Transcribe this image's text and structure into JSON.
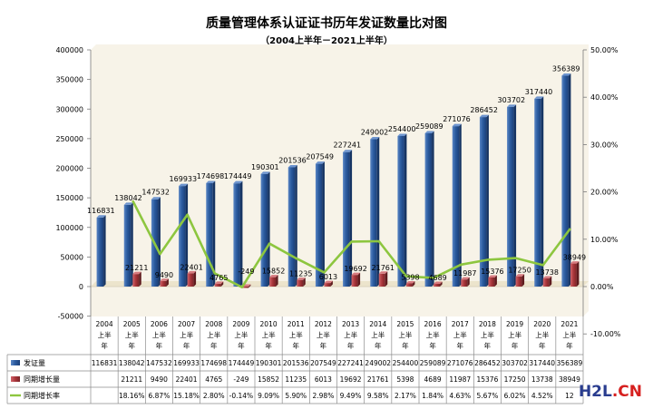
{
  "chart_data": {
    "type": "bar",
    "title": "质量管理体系认证证书历年发证数量比对图",
    "subtitle": "（2004上半年－2021上半年）",
    "categories": [
      {
        "year": "2004",
        "line2": "上半",
        "line3": "年"
      },
      {
        "year": "2005",
        "line2": "上半",
        "line3": "年"
      },
      {
        "year": "2006",
        "line2": "上半",
        "line3": "年"
      },
      {
        "year": "2007",
        "line2": "上半",
        "line3": "年"
      },
      {
        "year": "2008",
        "line2": "上半",
        "line3": "年"
      },
      {
        "year": "2009",
        "line2": "上半",
        "line3": "年"
      },
      {
        "year": "2010",
        "line2": "上半",
        "line3": "年"
      },
      {
        "year": "2011",
        "line2": "上半",
        "line3": "年"
      },
      {
        "year": "2012",
        "line2": "上半",
        "line3": "年"
      },
      {
        "year": "2013",
        "line2": "上半",
        "line3": "年"
      },
      {
        "year": "2014",
        "line2": "上半",
        "line3": "年"
      },
      {
        "year": "2015",
        "line2": "上半",
        "line3": "年"
      },
      {
        "year": "2016",
        "line2": "上半",
        "line3": "年"
      },
      {
        "year": "2017",
        "line2": "上半",
        "line3": "年"
      },
      {
        "year": "2018",
        "line2": "上半",
        "line3": "年"
      },
      {
        "year": "2019",
        "line2": "上半",
        "line3": "年"
      },
      {
        "year": "2020",
        "line2": "上半",
        "line3": "年"
      },
      {
        "year": "2021",
        "line2": "上半",
        "line3": "年"
      }
    ],
    "series": [
      {
        "name": "发证量",
        "kind": "bar",
        "axis": "left",
        "color": "#2e5fa3",
        "values": [
          116831,
          138042,
          147532,
          169933,
          174698,
          174449,
          190301,
          201536,
          207549,
          227241,
          249002,
          254400,
          259089,
          271076,
          286452,
          303702,
          317440,
          356389
        ],
        "table_labels": [
          "116831",
          "138042",
          "147532",
          "169933",
          "174698",
          "174449",
          "190301",
          "201536",
          "207549",
          "227241",
          "249002",
          "254400",
          "259089",
          "271076",
          "286452",
          "303702",
          "317440",
          "356389"
        ]
      },
      {
        "name": "同期增长量",
        "kind": "bar",
        "axis": "left",
        "color": "#b03a3e",
        "values": [
          null,
          21211,
          9490,
          22401,
          4765,
          -249,
          15852,
          11235,
          6013,
          19692,
          21761,
          5398,
          4689,
          11987,
          15376,
          17250,
          13738,
          38949
        ],
        "table_labels": [
          "",
          "21211",
          "9490",
          "22401",
          "4765",
          "-249",
          "15852",
          "11235",
          "6013",
          "19692",
          "21761",
          "5398",
          "4689",
          "11987",
          "15376",
          "17250",
          "13738",
          "38949"
        ]
      },
      {
        "name": "同期增长率",
        "kind": "line",
        "axis": "right",
        "color": "#8dc63f",
        "values": [
          null,
          18.16,
          6.87,
          15.18,
          2.8,
          -0.14,
          9.09,
          5.9,
          2.98,
          9.49,
          9.58,
          2.17,
          1.84,
          4.63,
          5.67,
          6.02,
          4.52,
          12.27
        ],
        "table_labels": [
          "",
          "18.16%",
          "6.87%",
          "15.18%",
          "2.80%",
          "-0.14%",
          "9.09%",
          "5.90%",
          "2.98%",
          "9.49%",
          "9.58%",
          "2.17%",
          "1.84%",
          "4.63%",
          "5.67%",
          "6.02%",
          "4.52%",
          "12"
        ]
      }
    ],
    "y_left": {
      "min": -50000,
      "max": 400000,
      "step": 50000,
      "tick_labels": [
        "-50000",
        "0",
        "50000",
        "100000",
        "150000",
        "200000",
        "250000",
        "300000",
        "350000",
        "400000"
      ]
    },
    "y_right": {
      "min": -10,
      "max": 50,
      "step": 10,
      "tick_labels": [
        "-10.00%",
        "0.00%",
        "10.00%",
        "20.00%",
        "30.00%",
        "40.00%",
        "50.00%"
      ]
    },
    "grid": false,
    "legend": "data-table",
    "colors": {
      "bar_base": "#f2ead3",
      "wall": "#f7f3e8"
    }
  },
  "watermark": {
    "part1": "H2L",
    "part2": ".CN"
  }
}
